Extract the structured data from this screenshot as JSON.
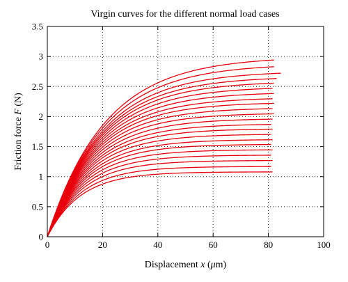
{
  "chart_data": {
    "type": "line",
    "title": "Virgin curves for the different normal load cases",
    "xlabel_parts": [
      "Displacement ",
      "x",
      " (",
      "μ",
      "m)"
    ],
    "ylabel_parts": [
      "Friction force ",
      "F",
      " (N)"
    ],
    "xlim": [
      0,
      100
    ],
    "ylim": [
      0,
      3.5
    ],
    "xticks": [
      0,
      20,
      40,
      60,
      80,
      100
    ],
    "yticks": [
      0,
      0.5,
      1,
      1.5,
      2,
      2.5,
      3,
      3.5
    ],
    "xtick_labels": [
      "0",
      "20",
      "40",
      "60",
      "80",
      "100"
    ],
    "ytick_labels": [
      "0",
      "0.5",
      "1",
      "1.5",
      "2",
      "2.5",
      "3",
      "3.5"
    ],
    "grid": true,
    "grid_style": "dotted",
    "line_color": "#e8000b",
    "series": [
      {
        "plateau": 1.08,
        "x_end": 81.5
      },
      {
        "plateau": 1.17,
        "x_end": 81
      },
      {
        "plateau": 1.27,
        "x_end": 81.5
      },
      {
        "plateau": 1.36,
        "x_end": 81
      },
      {
        "plateau": 1.45,
        "x_end": 81.5
      },
      {
        "plateau": 1.54,
        "x_end": 81
      },
      {
        "plateau": 1.62,
        "x_end": 81.5
      },
      {
        "plateau": 1.71,
        "x_end": 81
      },
      {
        "plateau": 1.8,
        "x_end": 81.5
      },
      {
        "plateau": 1.88,
        "x_end": 81
      },
      {
        "plateau": 1.97,
        "x_end": 81.5
      },
      {
        "plateau": 2.06,
        "x_end": 82
      },
      {
        "plateau": 2.15,
        "x_end": 81.5
      },
      {
        "plateau": 2.24,
        "x_end": 82
      },
      {
        "plateau": 2.32,
        "x_end": 81.5
      },
      {
        "plateau": 2.41,
        "x_end": 82
      },
      {
        "plateau": 2.5,
        "x_end": 81.5
      },
      {
        "plateau": 2.59,
        "x_end": 82
      },
      {
        "plateau": 2.67,
        "x_end": 83
      },
      {
        "plateau": 2.76,
        "x_end": 84.5
      },
      {
        "plateau": 2.88,
        "x_end": 82
      },
      {
        "plateau": 3.0,
        "x_end": 82
      }
    ]
  }
}
